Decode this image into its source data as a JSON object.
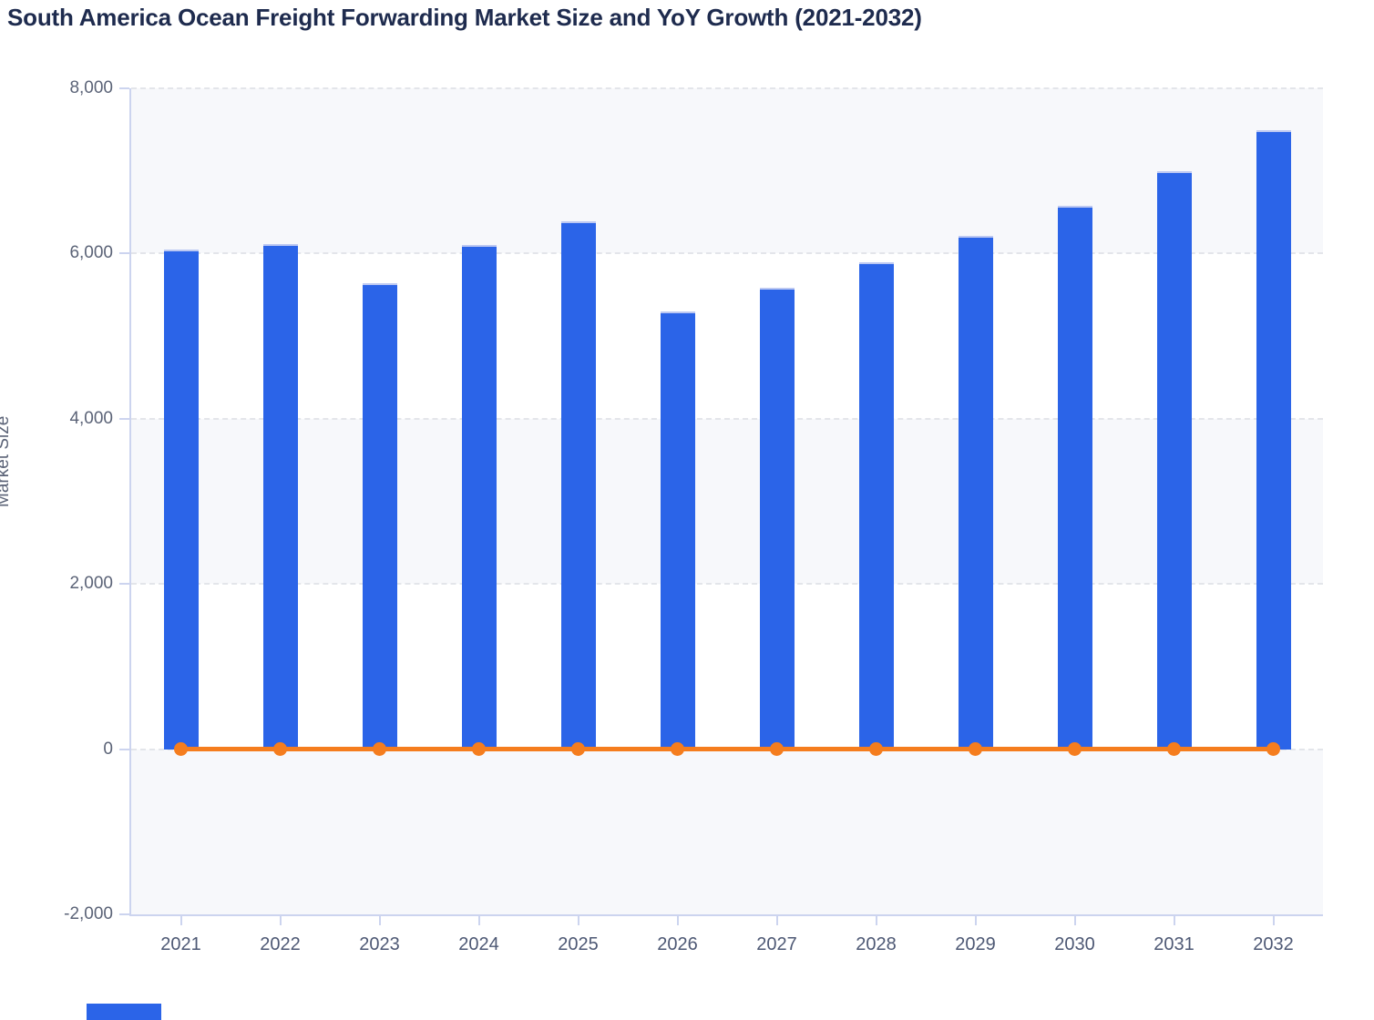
{
  "page": {
    "title": "South America Ocean Freight Forwarding Market Size and YoY Growth (2021-2032)"
  },
  "chart_data": {
    "type": "bar",
    "title": "South America Ocean Freight Forwarding Market Size and YoY Growth (2021-2032)",
    "xlabel": "",
    "ylabel": "Market Size",
    "categories": [
      "2021",
      "2022",
      "2023",
      "2024",
      "2025",
      "2026",
      "2027",
      "2028",
      "2029",
      "2030",
      "2031",
      "2032"
    ],
    "series": [
      {
        "name": "Market Size",
        "type": "bar",
        "color": "#2b64e8",
        "values": [
          6050,
          6110,
          5640,
          6100,
          6390,
          5300,
          5590,
          5890,
          6210,
          6580,
          7000,
          7490
        ]
      },
      {
        "name": "YoY Growth",
        "type": "line",
        "color": "#f57d1e",
        "values": [
          0,
          0,
          0,
          0,
          0,
          0,
          0,
          0,
          0,
          0,
          0,
          0
        ]
      }
    ],
    "ylim": [
      -2000,
      8000
    ],
    "yticks": {
      "values": [
        8000,
        6000,
        4000,
        2000,
        0,
        -2000
      ],
      "labels": [
        "8,000",
        "6,000",
        "4,000",
        "2,000",
        "0",
        "-2,000"
      ]
    },
    "grid": "horizontal-dashed",
    "legend_position": "none",
    "plot_background": "alternating bands gray/white every 2000 units"
  },
  "colors": {
    "bar": "#2b64e8",
    "bar_top_edge": "#bcc8f2",
    "line": "#f57d1e",
    "axis": "#ccd4ef",
    "gridline": "#e3e5ea",
    "band": "#f7f8fb",
    "title_text": "#1e2b4e",
    "tick_text": "#5b6377"
  }
}
